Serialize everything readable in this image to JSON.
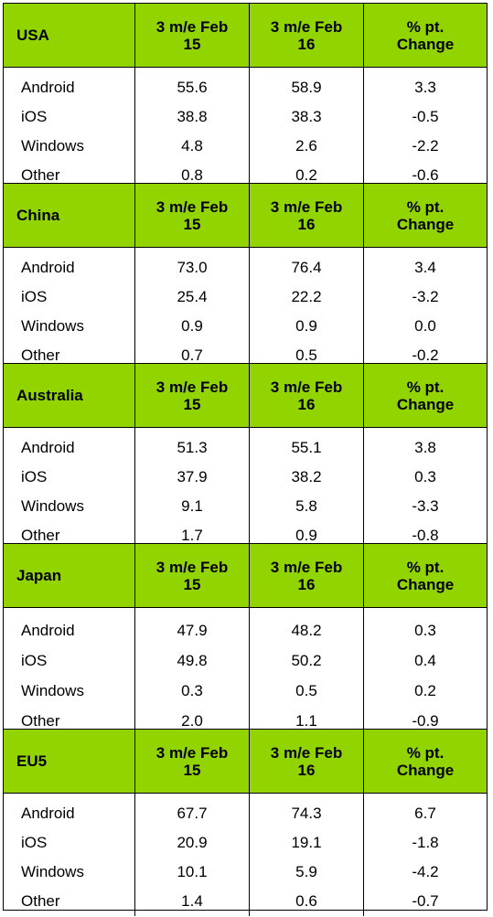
{
  "columns": [
    "3 m/e Feb 15",
    "3 m/e Feb 16",
    "% pt. Change"
  ],
  "column_lines": [
    [
      "3 m/e Feb",
      "15"
    ],
    [
      "3 m/e Feb",
      "16"
    ],
    [
      "% pt.",
      "Change"
    ]
  ],
  "sections": [
    {
      "region": "USA",
      "rows": [
        {
          "os": "Android",
          "feb15": "55.6",
          "feb16": "58.9",
          "change": "3.3"
        },
        {
          "os": "iOS",
          "feb15": "38.8",
          "feb16": "38.3",
          "change": "-0.5"
        },
        {
          "os": "Windows",
          "feb15": "4.8",
          "feb16": "2.6",
          "change": "-2.2"
        },
        {
          "os": "Other",
          "feb15": "0.8",
          "feb16": "0.2",
          "change": "-0.6"
        }
      ]
    },
    {
      "region": "China",
      "rows": [
        {
          "os": "Android",
          "feb15": "73.0",
          "feb16": "76.4",
          "change": "3.4"
        },
        {
          "os": "iOS",
          "feb15": "25.4",
          "feb16": "22.2",
          "change": "-3.2"
        },
        {
          "os": "Windows",
          "feb15": "0.9",
          "feb16": "0.9",
          "change": "0.0"
        },
        {
          "os": "Other",
          "feb15": "0.7",
          "feb16": "0.5",
          "change": "-0.2"
        }
      ]
    },
    {
      "region": "Australia",
      "rows": [
        {
          "os": "Android",
          "feb15": "51.3",
          "feb16": "55.1",
          "change": "3.8"
        },
        {
          "os": "iOS",
          "feb15": "37.9",
          "feb16": "38.2",
          "change": "0.3"
        },
        {
          "os": "Windows",
          "feb15": "9.1",
          "feb16": "5.8",
          "change": "-3.3"
        },
        {
          "os": "Other",
          "feb15": "1.7",
          "feb16": "0.9",
          "change": "-0.8"
        }
      ]
    },
    {
      "region": "Japan",
      "rows": [
        {
          "os": "Android",
          "feb15": "47.9",
          "feb16": "48.2",
          "change": "0.3"
        },
        {
          "os": "iOS",
          "feb15": "49.8",
          "feb16": "50.2",
          "change": "0.4"
        },
        {
          "os": "Windows",
          "feb15": "0.3",
          "feb16": "0.5",
          "change": "0.2"
        },
        {
          "os": "Other",
          "feb15": "2.0",
          "feb16": "1.1",
          "change": "-0.9"
        }
      ]
    },
    {
      "region": "EU5",
      "rows": [
        {
          "os": "Android",
          "feb15": "67.7",
          "feb16": "74.3",
          "change": "6.7"
        },
        {
          "os": "iOS",
          "feb15": "20.9",
          "feb16": "19.1",
          "change": "-1.8"
        },
        {
          "os": "Windows",
          "feb15": "10.1",
          "feb16": "5.9",
          "change": "-4.2"
        },
        {
          "os": "Other",
          "feb15": "1.4",
          "feb16": "0.6",
          "change": "-0.7"
        }
      ]
    }
  ],
  "colors": {
    "header_bg": "#92d400",
    "border": "#000000",
    "text": "#000000"
  }
}
